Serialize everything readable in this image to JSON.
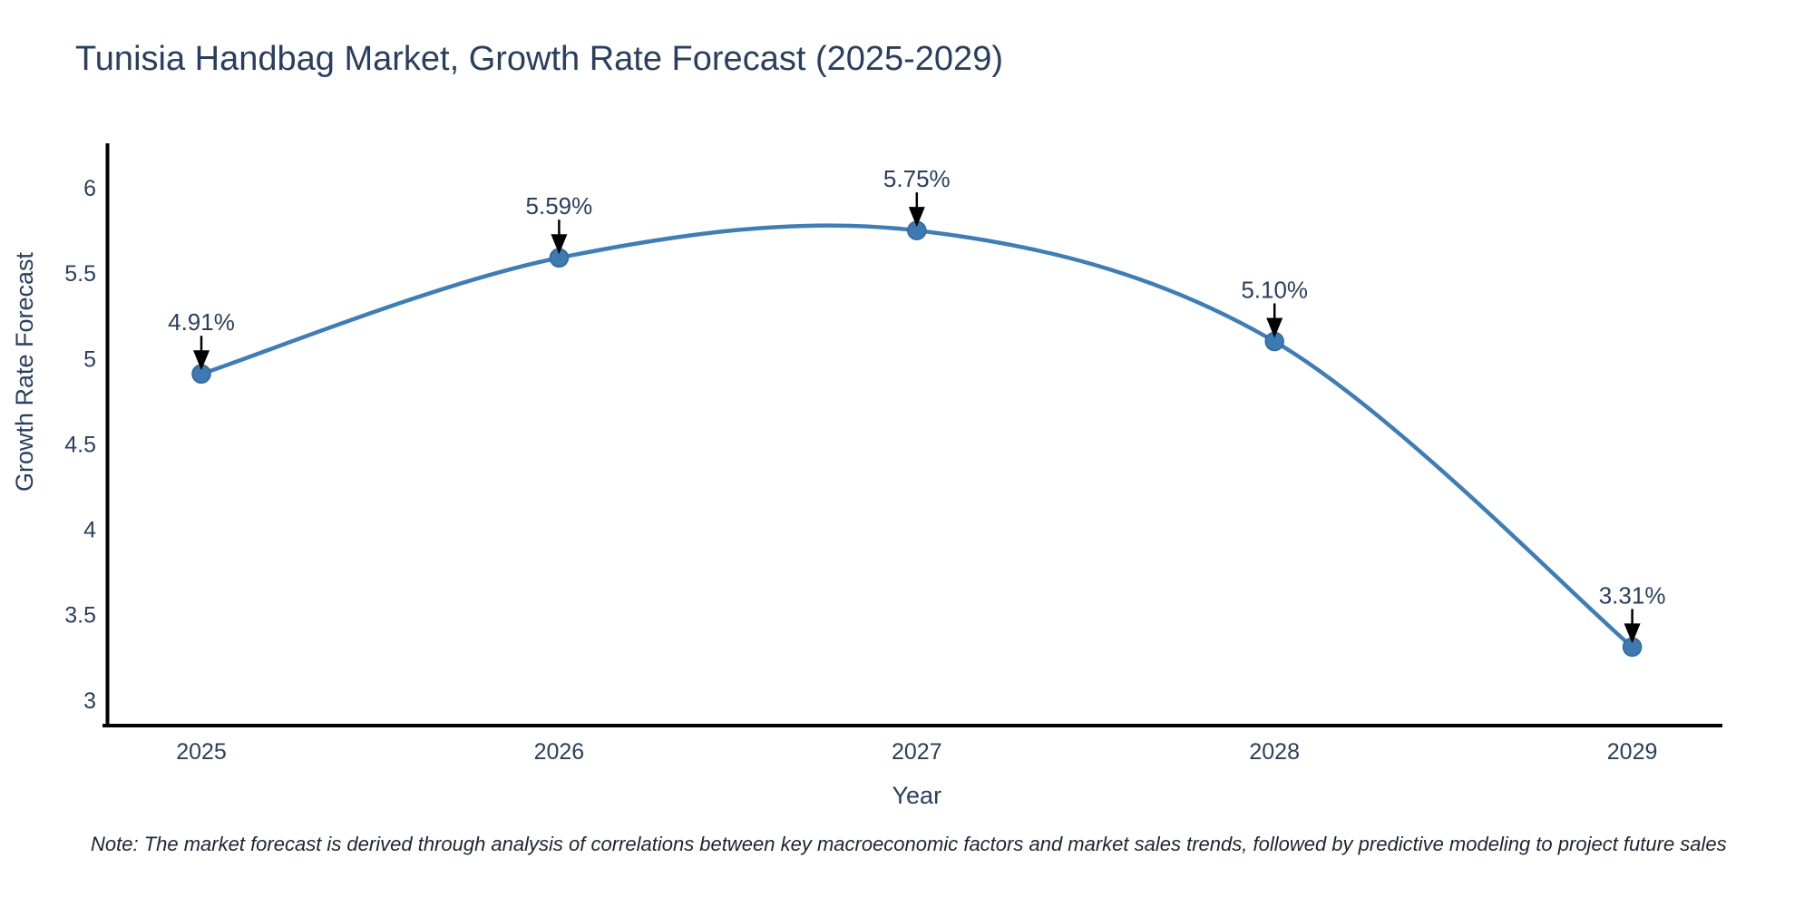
{
  "chart_data": {
    "type": "line",
    "title": "Tunisia Handbag Market, Growth Rate Forecast (2025-2029)",
    "note": "Note: The market forecast is derived through analysis of correlations between key macroeconomic factors and market sales trends, followed by predictive modeling to project future sales",
    "categories": [
      "2025",
      "2026",
      "2027",
      "2028",
      "2029"
    ],
    "values": [
      4.91,
      5.59,
      5.75,
      5.1,
      3.31
    ],
    "point_labels": [
      "4.91%",
      "5.59%",
      "5.75%",
      "5.10%",
      "3.31%"
    ],
    "xlabel": "Year",
    "ylabel": "Growth Rate Forecast",
    "yticks": [
      3,
      3.5,
      4,
      4.5,
      5,
      5.5,
      6
    ],
    "ytick_labels": [
      "3",
      "3.5",
      "4",
      "4.5",
      "5",
      "5.5",
      "6"
    ],
    "ylim": [
      2.85,
      6.25
    ],
    "line_shape": "spline",
    "grid": false,
    "legend": "none",
    "colors": {
      "line": "#3F7DB4",
      "marker": "#3C7AB1",
      "marker_edge": "#32689A",
      "text": "#2a3f5f",
      "annotation_text": "#2a3f5f",
      "axis": "#000000",
      "arrow": "#000000"
    }
  }
}
